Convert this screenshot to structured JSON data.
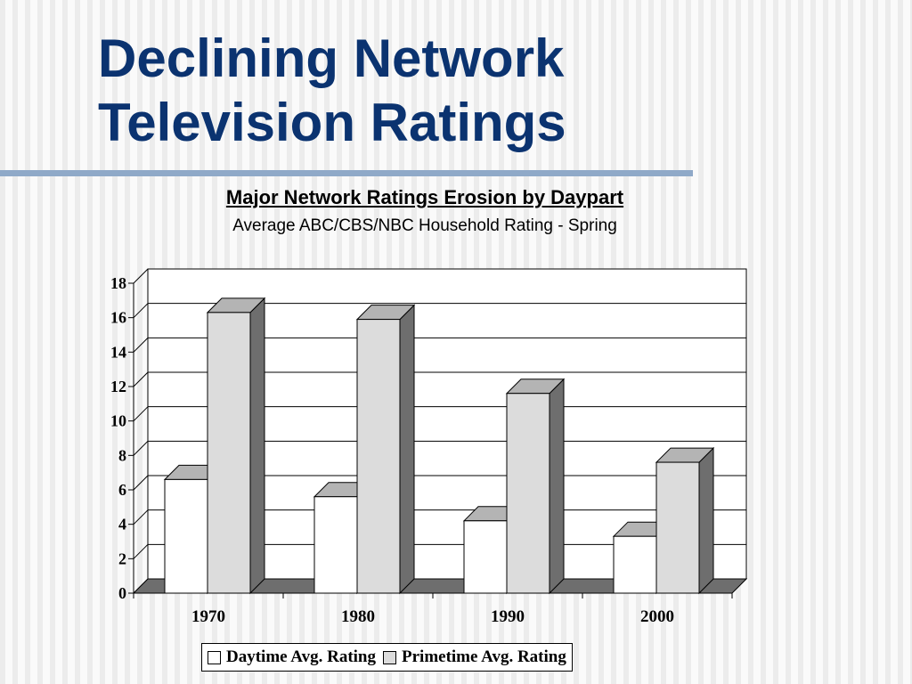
{
  "slide": {
    "title_line1": "Declining Network",
    "title_line2": "Television Ratings"
  },
  "chart_data": {
    "type": "bar",
    "title": "Major Network Ratings Erosion by Daypart",
    "subtitle": "Average ABC/CBS/NBC Household Rating - Spring",
    "categories": [
      "1970",
      "1980",
      "1990",
      "2000"
    ],
    "series": [
      {
        "name": "Daytime Avg. Rating",
        "values": [
          6.6,
          5.6,
          4.2,
          3.3
        ],
        "color": "#ffffff"
      },
      {
        "name": "Primetime Avg. Rating",
        "values": [
          16.3,
          15.9,
          11.6,
          7.6
        ],
        "color": "#dcdcdc"
      }
    ],
    "yticks": [
      "0",
      "2",
      "4",
      "6",
      "8",
      "10",
      "12",
      "14",
      "16",
      "18"
    ],
    "ylim": [
      0,
      18
    ],
    "grid": true,
    "legend_position": "bottom",
    "style": "3d"
  }
}
